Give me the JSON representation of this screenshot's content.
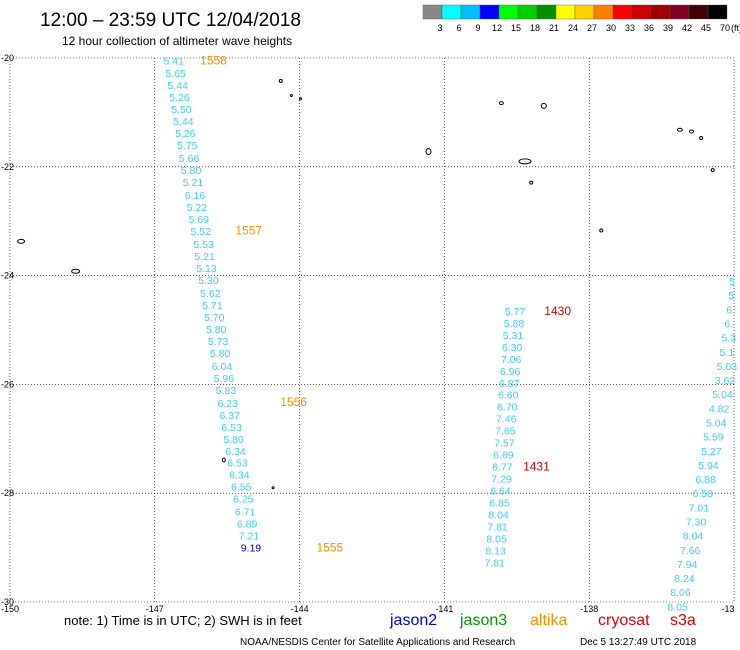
{
  "header": {
    "title": "12:00 – 23:59 UTC 12/04/2018",
    "subtitle": "12 hour collection of altimeter wave heights"
  },
  "color_scale": {
    "labels": [
      "3",
      "6",
      "9",
      "12",
      "15",
      "18",
      "21",
      "24",
      "27",
      "30",
      "33",
      "36",
      "39",
      "42",
      "45",
      "70",
      "(ft)"
    ],
    "colors": [
      "#888888",
      "#00ffff",
      "#00bfff",
      "#0000ff",
      "#00ff00",
      "#00d000",
      "#009000",
      "#ffff00",
      "#ffd000",
      "#ff8000",
      "#ff0000",
      "#d00000",
      "#a00000",
      "#800020",
      "#400000",
      "#000000"
    ]
  },
  "axes": {
    "lat_labels": [
      "-20",
      "-22",
      "-24",
      "-26",
      "-28",
      "-30"
    ],
    "lon_labels": [
      "-150",
      "-147",
      "-144",
      "-141",
      "-138",
      "-13"
    ]
  },
  "tracks": [
    {
      "id": "altika-west",
      "color": "#44ccee",
      "obs": [
        {
          "v": "5.41",
          "lon": -146.82,
          "lat": -20.05
        },
        {
          "v": "5.65",
          "lon": -146.78,
          "lat": -20.28
        },
        {
          "v": "5.44",
          "lon": -146.74,
          "lat": -20.5
        },
        {
          "v": "5.26",
          "lon": -146.7,
          "lat": -20.72
        },
        {
          "v": "5.50",
          "lon": -146.66,
          "lat": -20.94
        },
        {
          "v": "5.44",
          "lon": -146.62,
          "lat": -21.16
        },
        {
          "v": "5.26",
          "lon": -146.58,
          "lat": -21.38
        },
        {
          "v": "5.75",
          "lon": -146.54,
          "lat": -21.6
        },
        {
          "v": "5.66",
          "lon": -146.5,
          "lat": -21.84
        },
        {
          "v": "5.80",
          "lon": -146.46,
          "lat": -22.06
        },
        {
          "v": "5.21",
          "lon": -146.42,
          "lat": -22.28
        },
        {
          "v": "6.16",
          "lon": -146.38,
          "lat": -22.52
        },
        {
          "v": "5.22",
          "lon": -146.34,
          "lat": -22.74
        },
        {
          "v": "5.69",
          "lon": -146.3,
          "lat": -22.96
        },
        {
          "v": "5.52",
          "lon": -146.26,
          "lat": -23.18
        },
        {
          "v": "5.53",
          "lon": -146.2,
          "lat": -23.42
        },
        {
          "v": "5.21",
          "lon": -146.18,
          "lat": -23.64
        },
        {
          "v": "5.13",
          "lon": -146.14,
          "lat": -23.86
        },
        {
          "v": "5.30",
          "lon": -146.1,
          "lat": -24.08
        },
        {
          "v": "5.62",
          "lon": -146.06,
          "lat": -24.32
        },
        {
          "v": "5.71",
          "lon": -146.02,
          "lat": -24.54
        },
        {
          "v": "5.70",
          "lon": -145.98,
          "lat": -24.76
        },
        {
          "v": "5.80",
          "lon": -145.94,
          "lat": -24.98
        },
        {
          "v": "5.73",
          "lon": -145.9,
          "lat": -25.2
        },
        {
          "v": "5.80",
          "lon": -145.86,
          "lat": -25.42
        },
        {
          "v": "6.04",
          "lon": -145.82,
          "lat": -25.66
        },
        {
          "v": "5.96",
          "lon": -145.78,
          "lat": -25.88
        },
        {
          "v": "5.83",
          "lon": -145.74,
          "lat": -26.1
        },
        {
          "v": "6.23",
          "lon": -145.7,
          "lat": -26.34
        },
        {
          "v": "6.37",
          "lon": -145.66,
          "lat": -26.56
        },
        {
          "v": "6.53",
          "lon": -145.62,
          "lat": -26.78
        },
        {
          "v": "5.80",
          "lon": -145.58,
          "lat": -27.0
        },
        {
          "v": "6.34",
          "lon": -145.54,
          "lat": -27.22
        },
        {
          "v": "6.53",
          "lon": -145.5,
          "lat": -27.44
        },
        {
          "v": "6.34",
          "lon": -145.46,
          "lat": -27.66
        },
        {
          "v": "6.55",
          "lon": -145.42,
          "lat": -27.88
        },
        {
          "v": "6.25",
          "lon": -145.38,
          "lat": -28.1
        },
        {
          "v": "6.71",
          "lon": -145.34,
          "lat": -28.34
        },
        {
          "v": "6.89",
          "lon": -145.3,
          "lat": -28.56
        },
        {
          "v": "7.21",
          "lon": -145.26,
          "lat": -28.78
        },
        {
          "v": "9.19",
          "lon": -145.22,
          "lat": -29.0,
          "color": "#0000cc"
        }
      ],
      "times": [
        {
          "t": "1558",
          "lon": -146.06,
          "lat": -20.05,
          "color": "#ff8c00"
        },
        {
          "t": "1557",
          "lon": -145.33,
          "lat": -23.17,
          "color": "#ff8c00"
        },
        {
          "t": "1556",
          "lon": -144.4,
          "lat": -26.32,
          "color": "#ff8c00"
        },
        {
          "t": "1555",
          "lon": -143.65,
          "lat": -29.0,
          "color": "#ff8c00"
        }
      ]
    },
    {
      "id": "cryosat-middle",
      "color": "#44ccee",
      "obs": [
        {
          "v": "5.77",
          "lon": -139.75,
          "lat": -24.65
        },
        {
          "v": "5.88",
          "lon": -139.77,
          "lat": -24.87
        },
        {
          "v": "5.31",
          "lon": -139.79,
          "lat": -25.09
        },
        {
          "v": "6.30",
          "lon": -139.81,
          "lat": -25.31
        },
        {
          "v": "7.06",
          "lon": -139.83,
          "lat": -25.53
        },
        {
          "v": "6.96",
          "lon": -139.85,
          "lat": -25.75
        },
        {
          "v": "6.87",
          "lon": -139.87,
          "lat": -25.97
        },
        {
          "v": "6.60",
          "lon": -139.89,
          "lat": -26.19
        },
        {
          "v": "6.70",
          "lon": -139.91,
          "lat": -26.41
        },
        {
          "v": "7.46",
          "lon": -139.93,
          "lat": -26.63
        },
        {
          "v": "7.65",
          "lon": -139.95,
          "lat": -26.85
        },
        {
          "v": "7.57",
          "lon": -139.97,
          "lat": -27.07
        },
        {
          "v": "6.69",
          "lon": -139.99,
          "lat": -27.29
        },
        {
          "v": "6.77",
          "lon": -140.01,
          "lat": -27.51
        },
        {
          "v": "7.29",
          "lon": -140.03,
          "lat": -27.73
        },
        {
          "v": "6.64",
          "lon": -140.05,
          "lat": -27.95
        },
        {
          "v": "6.85",
          "lon": -140.07,
          "lat": -28.17
        },
        {
          "v": "8.04",
          "lon": -140.09,
          "lat": -28.39
        },
        {
          "v": "7.81",
          "lon": -140.11,
          "lat": -28.61
        },
        {
          "v": "8.05",
          "lon": -140.13,
          "lat": -28.83
        },
        {
          "v": "8.13",
          "lon": -140.15,
          "lat": -29.05
        },
        {
          "v": "7.81",
          "lon": -140.17,
          "lat": -29.27
        }
      ],
      "times": [
        {
          "t": "1430",
          "lon": -138.93,
          "lat": -24.65,
          "color": "#dd0000"
        },
        {
          "t": "1431",
          "lon": -139.37,
          "lat": -27.51,
          "color": "#dd0000"
        }
      ]
    },
    {
      "id": "cryosat-east",
      "color": "#44ccee",
      "obs": [
        {
          "v": "5",
          "lon": -135.1,
          "lat": -24.1
        },
        {
          "v": "5",
          "lon": -135.12,
          "lat": -24.36
        },
        {
          "v": "6.",
          "lon": -135.16,
          "lat": -24.62
        },
        {
          "v": "6.",
          "lon": -135.2,
          "lat": -24.88
        },
        {
          "v": "5.3",
          "lon": -135.26,
          "lat": -25.14
        },
        {
          "v": "5.1",
          "lon": -135.3,
          "lat": -25.4
        },
        {
          "v": "5.03",
          "lon": -135.36,
          "lat": -25.66
        },
        {
          "v": "3.62",
          "lon": -135.4,
          "lat": -25.92
        },
        {
          "v": "5.04",
          "lon": -135.45,
          "lat": -26.18
        },
        {
          "v": "4.82",
          "lon": -135.52,
          "lat": -26.44
        },
        {
          "v": "5.04",
          "lon": -135.58,
          "lat": -26.7
        },
        {
          "v": "5.59",
          "lon": -135.64,
          "lat": -26.96
        },
        {
          "v": "5.27",
          "lon": -135.68,
          "lat": -27.22
        },
        {
          "v": "5.94",
          "lon": -135.74,
          "lat": -27.48
        },
        {
          "v": "6.88",
          "lon": -135.8,
          "lat": -27.74
        },
        {
          "v": "6.58",
          "lon": -135.86,
          "lat": -28.0
        },
        {
          "v": "7.01",
          "lon": -135.94,
          "lat": -28.26
        },
        {
          "v": "7.30",
          "lon": -136.0,
          "lat": -28.52
        },
        {
          "v": "8.04",
          "lon": -136.06,
          "lat": -28.78
        },
        {
          "v": "7.66",
          "lon": -136.12,
          "lat": -29.04
        },
        {
          "v": "7.94",
          "lon": -136.18,
          "lat": -29.3
        },
        {
          "v": "8.24",
          "lon": -136.24,
          "lat": -29.56
        },
        {
          "v": "8.06",
          "lon": -136.32,
          "lat": -29.82
        },
        {
          "v": "8.05",
          "lon": -136.38,
          "lat": -30.08
        }
      ],
      "times": []
    }
  ],
  "islands": [
    {
      "lon": -149.77,
      "lat": -23.37,
      "w": 7,
      "h": 4
    },
    {
      "lon": -148.64,
      "lat": -23.92,
      "w": 8,
      "h": 4
    },
    {
      "lon": -144.39,
      "lat": -20.42,
      "w": 3,
      "h": 3
    },
    {
      "lon": -144.17,
      "lat": -20.69,
      "w": 2,
      "h": 2
    },
    {
      "lon": -143.98,
      "lat": -20.75,
      "w": 2,
      "h": 2
    },
    {
      "lon": -141.33,
      "lat": -21.72,
      "w": 5,
      "h": 6
    },
    {
      "lon": -139.82,
      "lat": -20.83,
      "w": 4,
      "h": 3
    },
    {
      "lon": -138.94,
      "lat": -20.88,
      "w": 5,
      "h": 5
    },
    {
      "lon": -139.33,
      "lat": -21.9,
      "w": 12,
      "h": 5
    },
    {
      "lon": -139.2,
      "lat": -22.29,
      "w": 3,
      "h": 3
    },
    {
      "lon": -136.12,
      "lat": -21.32,
      "w": 5,
      "h": 3
    },
    {
      "lon": -135.88,
      "lat": -21.35,
      "w": 4,
      "h": 3
    },
    {
      "lon": -135.68,
      "lat": -21.47,
      "w": 3,
      "h": 3
    },
    {
      "lon": -134.7,
      "lat": -21.49,
      "w": 9,
      "h": 7
    },
    {
      "lon": -135.44,
      "lat": -22.06,
      "w": 3,
      "h": 3
    },
    {
      "lon": -137.75,
      "lat": -23.17,
      "w": 3,
      "h": 3
    },
    {
      "lon": -134.56,
      "lat": -23.17,
      "w": 2,
      "h": 3
    },
    {
      "lon": -145.57,
      "lat": -27.39,
      "w": 3,
      "h": 4
    },
    {
      "lon": -144.55,
      "lat": -27.9,
      "w": 2,
      "h": 2
    }
  ],
  "legend": {
    "note": "note: 1) Time is in UTC; 2) SWH is in feet",
    "satellites": [
      {
        "name": "jason2",
        "color": "#0000cc"
      },
      {
        "name": "jason3",
        "color": "#009900"
      },
      {
        "name": "altika",
        "color": "#ff8c00"
      },
      {
        "name": "cryosat",
        "color": "#dd0000"
      },
      {
        "name": "s3a",
        "color": "#dd0000"
      }
    ],
    "credit": "NOAA/NESDIS Center for Satellite Applications and Research",
    "timestamp": "Dec  5 13:27:49 UTC 2018"
  }
}
